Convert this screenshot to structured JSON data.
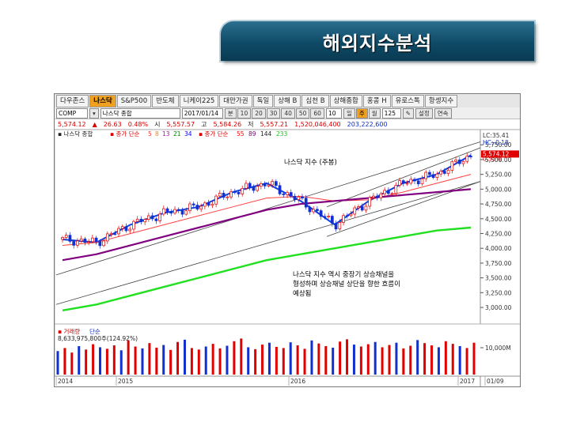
{
  "slide_title": "해외지수분석",
  "tabs": [
    "다우존스",
    "나스닥",
    "S&P500",
    "반도체",
    "니케이225",
    "대만가권",
    "독일",
    "상해 B",
    "심천 B",
    "상해종합",
    "홍콩 H",
    "유로스톡",
    "항셍지수"
  ],
  "active_tab": 1,
  "toolbar": {
    "code": "COMP",
    "name": "나스닥 종합",
    "date": "2017/01/14",
    "periods": [
      "분",
      "10",
      "20",
      "30",
      "40",
      "50",
      "60"
    ],
    "count": "10",
    "intervals": [
      "일",
      "주",
      "월"
    ],
    "active_interval": 1,
    "bars": "125",
    "settings_label": "설정",
    "continuous_label": "연속"
  },
  "quote": {
    "price": "5,574.12",
    "arrow": "▲",
    "change": "26.63",
    "pct": "0.48%",
    "open_label": "시",
    "open": "5,557.57",
    "high_label": "고",
    "high": "5,584.26",
    "low_label": "저",
    "low": "5,557.21",
    "volume": "1,520,046,400",
    "amount": "203,222,600"
  },
  "legend": {
    "title": "나스닥 종합",
    "ma1_label": "종가 단순",
    "ma1_periods": [
      "5",
      "8",
      "13",
      "21",
      "34"
    ],
    "ma2_label": "종가 단순",
    "ma2_periods": [
      "55",
      "89",
      "144",
      "233"
    ]
  },
  "annotation_title": "나스닥 지수 (주봉)",
  "annotation_body": [
    "나스닥 지수 역시 중장기 상승채널을",
    "형성하며 상승채널 상단을 향한 흐름이",
    "예상됨"
  ],
  "right_badges": {
    "lc": "LC:35.41",
    "hc": "HC:-0.18",
    "pct": "0.55%",
    "last": "5,574.12"
  },
  "volume": {
    "title": "거래량",
    "mode": "단순",
    "value": "8,633,975,800주(124.92%)",
    "scale": "10,000M"
  },
  "x_labels": [
    "2014",
    "2015",
    "2016",
    "2017",
    "01/09"
  ],
  "colors": {
    "up": "#e00000",
    "down": "#1030d0",
    "ma_blue": "#1040e0",
    "ma_purple": "#800080",
    "ma_green": "#20e020",
    "accent": "#f0a020"
  },
  "chart_data": {
    "type": "line",
    "title": "나스닥 지수 (주봉)",
    "ylim": [
      2800,
      5900
    ],
    "y_ticks": [
      "5,750.00",
      "5,500.00",
      "5,250.00",
      "5,000.00",
      "4,750.00",
      "4,500.00",
      "4,250.00",
      "4,000.00",
      "3,750.00",
      "3,500.00",
      "3,250.00",
      "3,000.00"
    ],
    "y_tick_values": [
      5750,
      5500,
      5250,
      5000,
      4750,
      4500,
      4250,
      4000,
      3750,
      3500,
      3250,
      3000
    ],
    "x": [
      "2014-01",
      "2014-04",
      "2014-07",
      "2014-10",
      "2015-01",
      "2015-04",
      "2015-07",
      "2015-10",
      "2016-01",
      "2016-04",
      "2016-07",
      "2016-10",
      "2017-01"
    ],
    "series": [
      {
        "name": "나스닥 종합",
        "values": [
          4150,
          4100,
          4400,
          4600,
          4700,
          4950,
          5100,
          4800,
          4400,
          4800,
          5100,
          5250,
          5574
        ]
      },
      {
        "name": "55",
        "values": [
          4050,
          4100,
          4250,
          4400,
          4550,
          4700,
          4850,
          4880,
          4800,
          4820,
          4950,
          5100,
          5250
        ]
      },
      {
        "name": "144",
        "values": [
          3800,
          3900,
          4050,
          4200,
          4350,
          4500,
          4650,
          4750,
          4800,
          4850,
          4900,
          4950,
          5000
        ]
      },
      {
        "name": "233",
        "values": [
          2950,
          3050,
          3200,
          3350,
          3500,
          3650,
          3800,
          3900,
          4000,
          4100,
          4200,
          4300,
          4350
        ]
      }
    ],
    "volume_values": [
      62,
      70,
      58,
      75,
      66,
      80,
      72,
      68,
      77,
      64,
      90,
      74,
      69,
      83,
      71,
      78,
      65,
      86,
      92,
      70,
      66,
      74,
      81,
      69,
      76,
      88,
      95,
      72,
      67,
      79,
      84,
      73,
      70,
      85,
      77,
      68,
      90,
      82,
      75,
      71,
      87,
      93,
      79,
      74,
      80,
      86,
      72,
      78,
      84,
      69,
      76,
      91,
      83,
      77,
      72,
      88,
      81,
      75,
      70,
      84
    ]
  }
}
